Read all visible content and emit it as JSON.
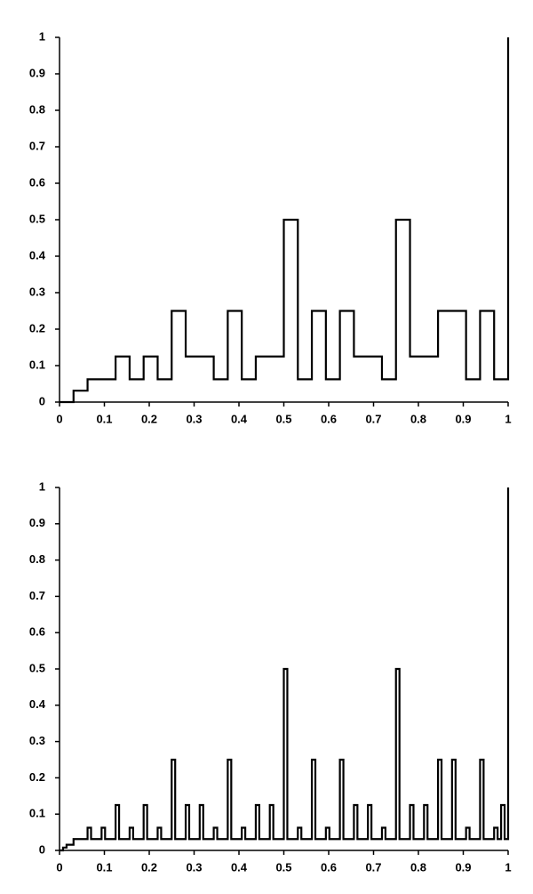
{
  "chart_data": [
    {
      "type": "line",
      "step": "post",
      "color": "#000000",
      "x": [
        0,
        0.03125,
        0.0625,
        0.09375,
        0.125,
        0.15625,
        0.1875,
        0.21875,
        0.25,
        0.28125,
        0.3125,
        0.34375,
        0.375,
        0.40625,
        0.4375,
        0.46875,
        0.5,
        0.53125,
        0.5625,
        0.59375,
        0.625,
        0.65625,
        0.6875,
        0.71875,
        0.75,
        0.78125,
        0.8125,
        0.84375,
        0.875,
        0.90625,
        0.9375,
        0.96875,
        1
      ],
      "values": [
        0,
        0.03125,
        0.0625,
        0.0625,
        0.125,
        0.0625,
        0.125,
        0.0625,
        0.25,
        0.125,
        0.125,
        0.0625,
        0.25,
        0.0625,
        0.125,
        0.125,
        0.5,
        0.0625,
        0.25,
        0.0625,
        0.25,
        0.125,
        0.125,
        0.0625,
        0.5,
        0.125,
        0.125,
        0.25,
        0.25,
        0.0625,
        0.25,
        0.0625,
        1
      ],
      "xlim": [
        0,
        1
      ],
      "ylim": [
        0,
        1
      ],
      "xticks": [
        0,
        0.1,
        0.2,
        0.3,
        0.4,
        0.5,
        0.6,
        0.7,
        0.8,
        0.9,
        1
      ],
      "yticks": [
        0,
        0.1,
        0.2,
        0.3,
        0.4,
        0.5,
        0.6,
        0.7,
        0.8,
        0.9,
        1
      ]
    },
    {
      "type": "line",
      "step": "post",
      "color": "#000000",
      "x": [
        0,
        0.0078125,
        0.015625,
        0.0234375,
        0.03125,
        0.0390625,
        0.046875,
        0.0546875,
        0.0625,
        0.0703125,
        0.078125,
        0.0859375,
        0.09375,
        0.1015625,
        0.109375,
        0.1171875,
        0.125,
        0.1328125,
        0.140625,
        0.1484375,
        0.15625,
        0.1640625,
        0.171875,
        0.1796875,
        0.1875,
        0.1953125,
        0.203125,
        0.2109375,
        0.21875,
        0.2265625,
        0.234375,
        0.2421875,
        0.25,
        0.2578125,
        0.265625,
        0.2734375,
        0.28125,
        0.2890625,
        0.296875,
        0.3046875,
        0.3125,
        0.3203125,
        0.328125,
        0.3359375,
        0.34375,
        0.3515625,
        0.359375,
        0.3671875,
        0.375,
        0.3828125,
        0.390625,
        0.3984375,
        0.40625,
        0.4140625,
        0.421875,
        0.4296875,
        0.4375,
        0.4453125,
        0.453125,
        0.4609375,
        0.46875,
        0.4765625,
        0.484375,
        0.4921875,
        0.5,
        0.5078125,
        0.515625,
        0.5234375,
        0.53125,
        0.5390625,
        0.546875,
        0.5546875,
        0.5625,
        0.5703125,
        0.578125,
        0.5859375,
        0.59375,
        0.6015625,
        0.609375,
        0.6171875,
        0.625,
        0.6328125,
        0.640625,
        0.6484375,
        0.65625,
        0.6640625,
        0.671875,
        0.6796875,
        0.6875,
        0.6953125,
        0.703125,
        0.7109375,
        0.71875,
        0.7265625,
        0.734375,
        0.7421875,
        0.75,
        0.7578125,
        0.765625,
        0.7734375,
        0.78125,
        0.7890625,
        0.796875,
        0.8046875,
        0.8125,
        0.8203125,
        0.828125,
        0.8359375,
        0.84375,
        0.8515625,
        0.859375,
        0.8671875,
        0.875,
        0.8828125,
        0.890625,
        0.8984375,
        0.90625,
        0.9140625,
        0.921875,
        0.9296875,
        0.9375,
        0.9453125,
        0.953125,
        0.9609375,
        0.96875,
        0.9765625,
        0.984375,
        0.9921875,
        1
      ],
      "values": [
        0,
        0.0078125,
        0.015625,
        0.015625,
        0.03125,
        0.03125,
        0.03125,
        0.03125,
        0.0625,
        0.03125,
        0.03125,
        0.03125,
        0.0625,
        0.03125,
        0.03125,
        0.03125,
        0.125,
        0.03125,
        0.03125,
        0.03125,
        0.0625,
        0.03125,
        0.03125,
        0.03125,
        0.125,
        0.03125,
        0.03125,
        0.03125,
        0.0625,
        0.03125,
        0.03125,
        0.03125,
        0.25,
        0.03125,
        0.03125,
        0.03125,
        0.125,
        0.03125,
        0.03125,
        0.03125,
        0.125,
        0.03125,
        0.03125,
        0.03125,
        0.0625,
        0.03125,
        0.03125,
        0.03125,
        0.25,
        0.03125,
        0.03125,
        0.03125,
        0.0625,
        0.03125,
        0.03125,
        0.03125,
        0.125,
        0.03125,
        0.03125,
        0.03125,
        0.125,
        0.03125,
        0.03125,
        0.03125,
        0.5,
        0.03125,
        0.03125,
        0.03125,
        0.0625,
        0.03125,
        0.03125,
        0.03125,
        0.25,
        0.03125,
        0.03125,
        0.03125,
        0.0625,
        0.03125,
        0.03125,
        0.03125,
        0.25,
        0.03125,
        0.03125,
        0.03125,
        0.125,
        0.03125,
        0.03125,
        0.03125,
        0.125,
        0.03125,
        0.03125,
        0.03125,
        0.0625,
        0.03125,
        0.03125,
        0.03125,
        0.5,
        0.03125,
        0.03125,
        0.03125,
        0.125,
        0.03125,
        0.03125,
        0.03125,
        0.125,
        0.03125,
        0.03125,
        0.03125,
        0.25,
        0.03125,
        0.03125,
        0.03125,
        0.25,
        0.03125,
        0.03125,
        0.03125,
        0.0625,
        0.03125,
        0.03125,
        0.03125,
        0.25,
        0.03125,
        0.03125,
        0.03125,
        0.0625,
        0.03125,
        0.125,
        0.03125,
        1
      ],
      "xlim": [
        0,
        1
      ],
      "ylim": [
        0,
        1
      ],
      "xticks": [
        0,
        0.1,
        0.2,
        0.3,
        0.4,
        0.5,
        0.6,
        0.7,
        0.8,
        0.9,
        1
      ],
      "yticks": [
        0,
        0.1,
        0.2,
        0.3,
        0.4,
        0.5,
        0.6,
        0.7,
        0.8,
        0.9,
        1
      ]
    }
  ]
}
